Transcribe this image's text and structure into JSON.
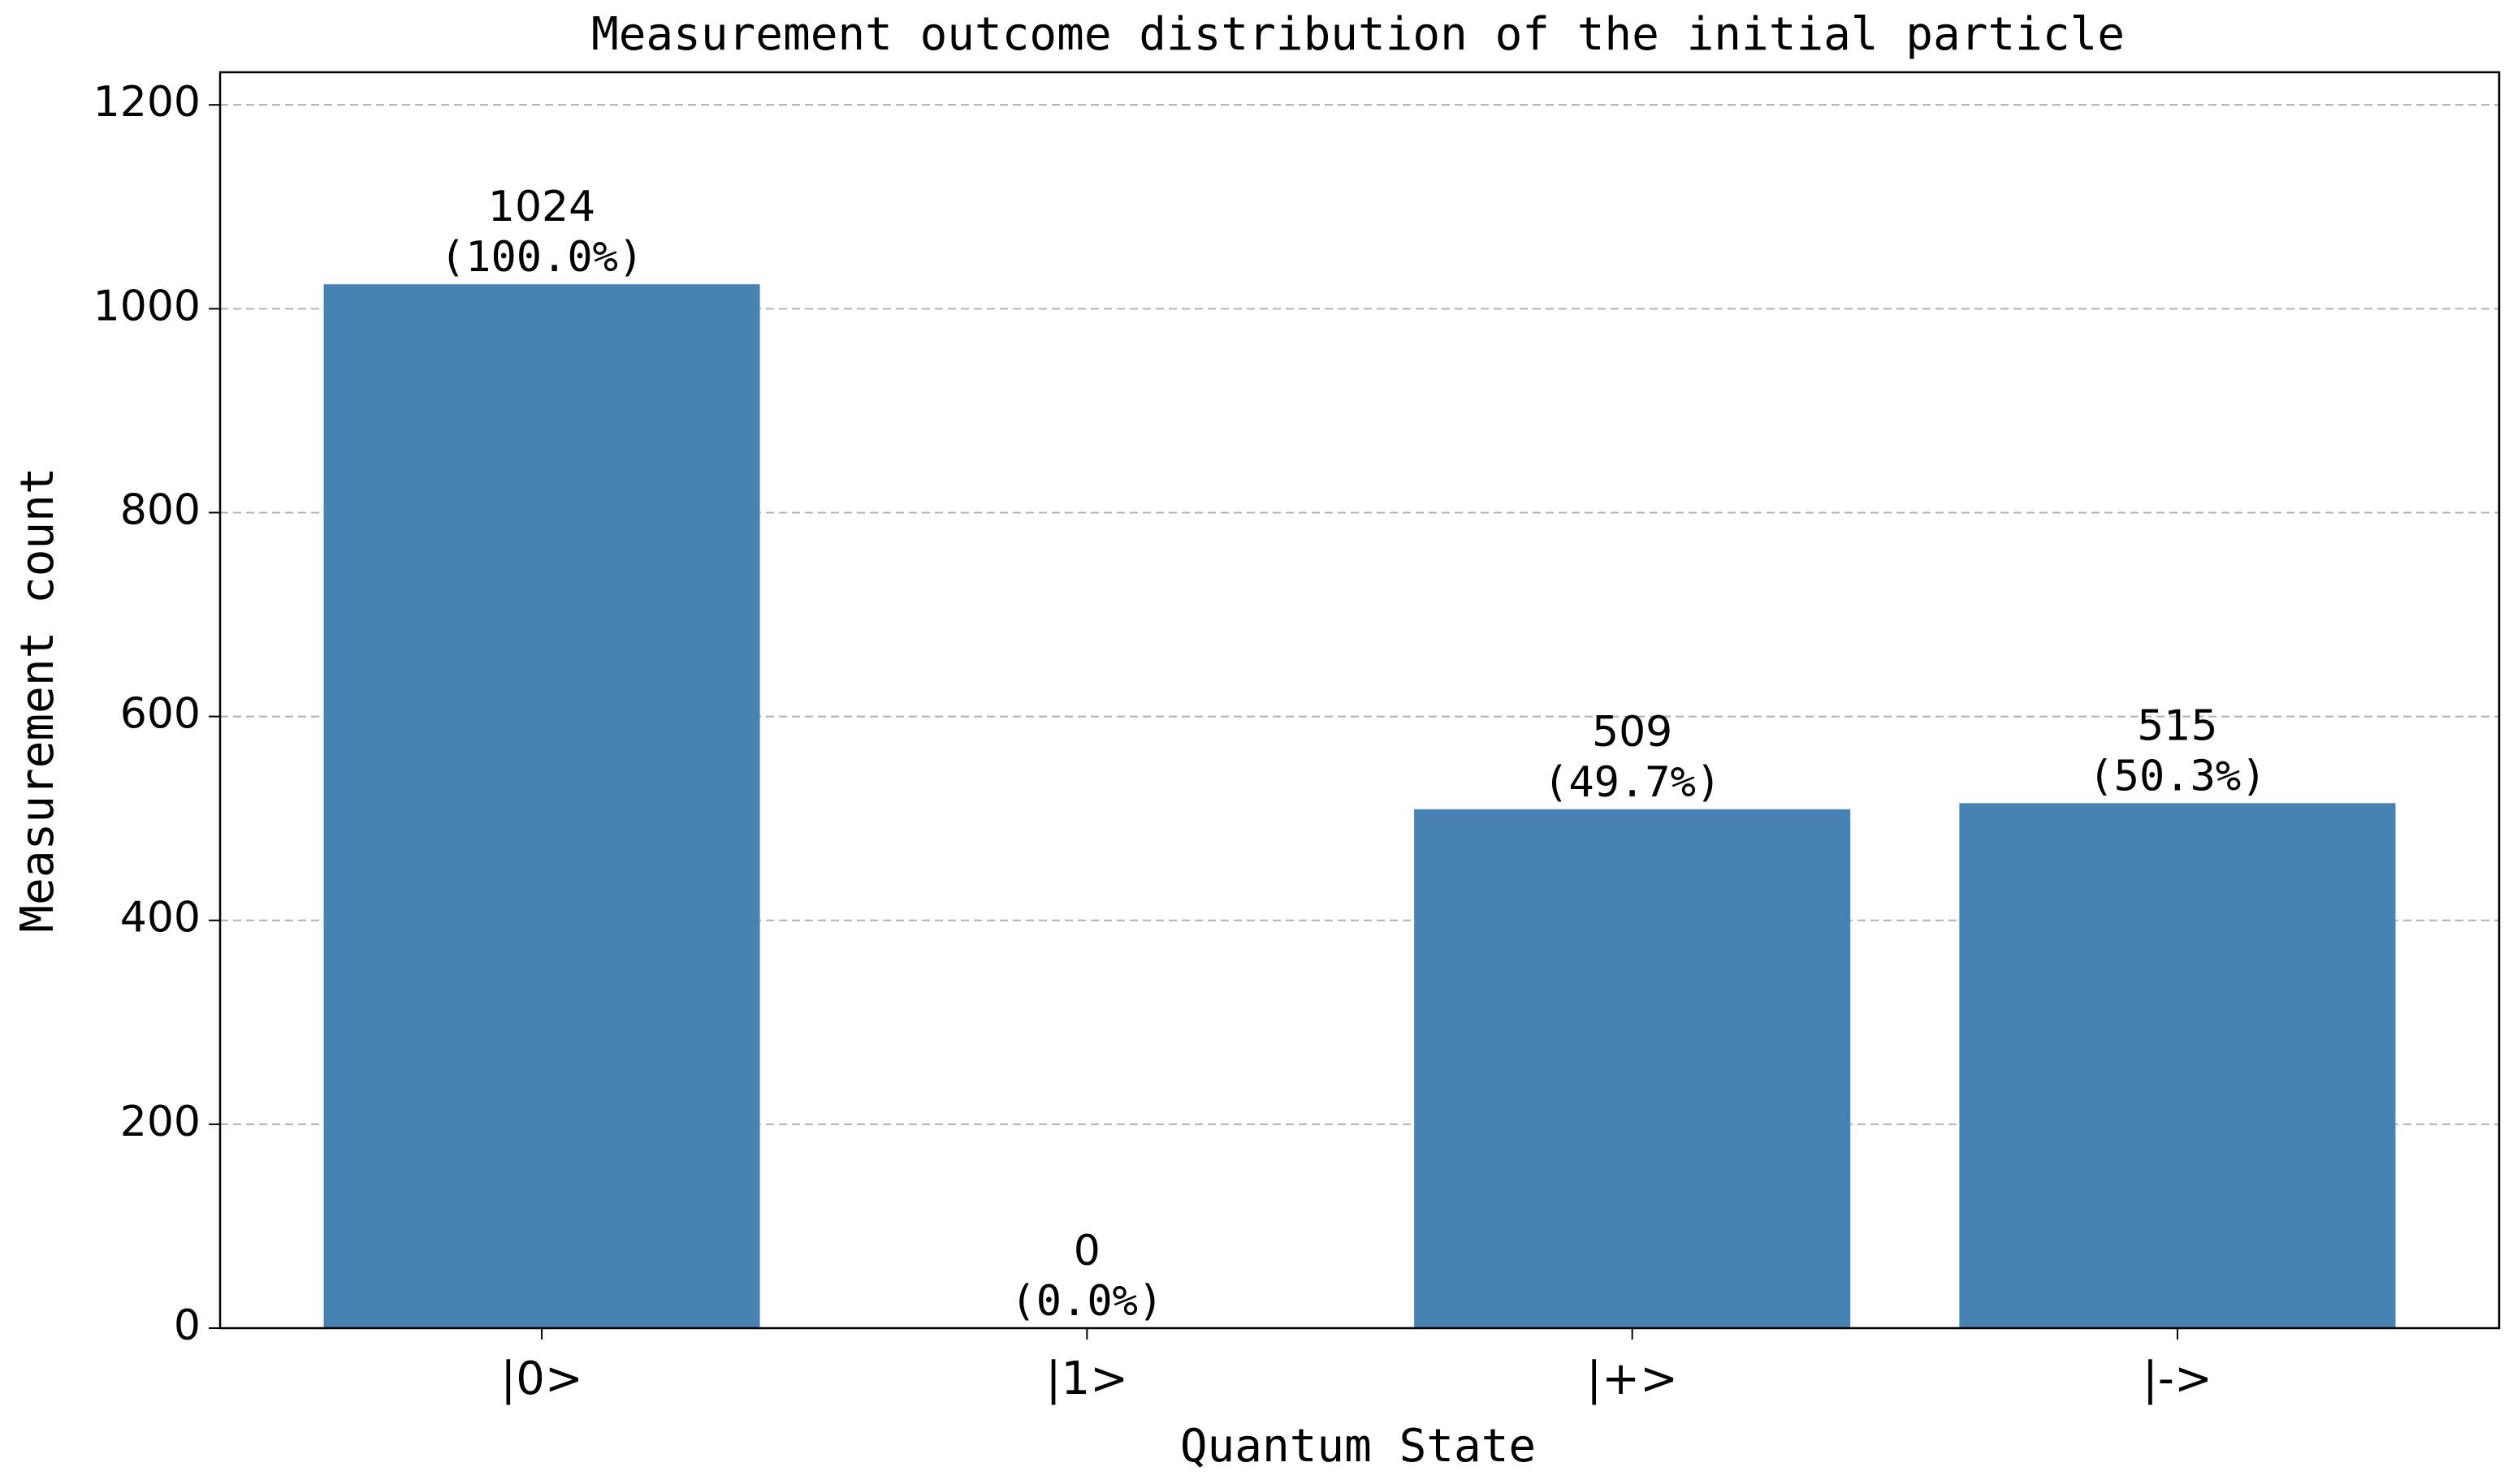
{
  "chart_data": {
    "type": "bar",
    "title": "Measurement outcome distribution of the initial particle",
    "xlabel": "Quantum State",
    "ylabel": "Measurement count",
    "categories": [
      "|0>",
      "|1>",
      "|+>",
      "|->"
    ],
    "values": [
      1024,
      0,
      509,
      515
    ],
    "percent_labels": [
      "(100.0%)",
      "(0.0%)",
      "(49.7%)",
      "(50.3%)"
    ],
    "color": "#4682b4",
    "ylim": [
      0,
      1232
    ],
    "yticks": [
      0,
      200,
      400,
      600,
      800,
      1000,
      1200
    ],
    "grid": true
  }
}
